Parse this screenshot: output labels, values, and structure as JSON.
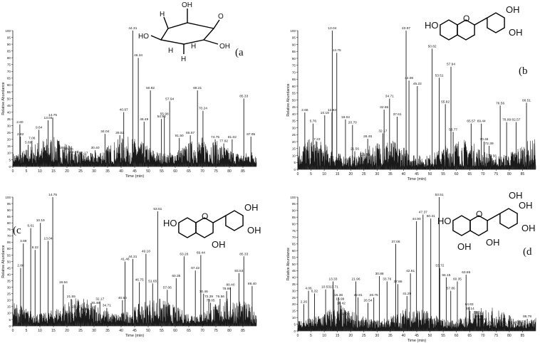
{
  "colors": {
    "trace": "#1a1a1a",
    "axis": "#222222",
    "text": "#111111"
  },
  "chart_data": [
    {
      "type": "line",
      "panel_label": "(a",
      "xlabel": "Time (min)",
      "ylabel": "Relative Abundance",
      "xlim": [
        0,
        90
      ],
      "ylim": [
        0,
        100
      ],
      "xticks": [
        "0",
        "5",
        "10",
        "15",
        "20",
        "25",
        "30",
        "35",
        "40",
        "45",
        "50",
        "55",
        "60",
        "65",
        "70",
        "75",
        "80",
        "85"
      ],
      "yticks": [
        "0",
        "5",
        "10",
        "15",
        "20",
        "25",
        "30",
        "35",
        "40",
        "45",
        "50",
        "55",
        "60",
        "65",
        "70",
        "75",
        "80",
        "85",
        "90",
        "95",
        "100"
      ],
      "structure": "myo-inositol",
      "peaks": [
        {
          "rt": 2.6,
          "label": "2.60",
          "y": 31
        },
        {
          "rt": 2.82,
          "label": "2.82",
          "y": 22
        },
        {
          "rt": 5.69,
          "label": "5.69",
          "y": 16
        },
        {
          "rt": 7.06,
          "label": "7.06",
          "y": 19
        },
        {
          "rt": 9.64,
          "label": "9.64",
          "y": 27
        },
        {
          "rt": 13.04,
          "label": "13.04",
          "y": 34
        },
        {
          "rt": 14.75,
          "label": "14.75",
          "y": 36
        },
        {
          "rt": 18.64,
          "label": "18.64",
          "y": 12
        },
        {
          "rt": 20.7,
          "label": "20.70",
          "y": 11
        },
        {
          "rt": 22.65,
          "label": "22.65",
          "y": 9
        },
        {
          "rt": 26.17,
          "label": "26.17",
          "y": 8
        },
        {
          "rt": 30.4,
          "label": "30.40",
          "y": 12
        },
        {
          "rt": 34.04,
          "label": "34.04",
          "y": 24
        },
        {
          "rt": 39.52,
          "label": "39.52",
          "y": 23
        },
        {
          "rt": 40.97,
          "label": "40.97",
          "y": 40
        },
        {
          "rt": 44.31,
          "label": "44.31",
          "y": 100
        },
        {
          "rt": 46.34,
          "label": "46.34",
          "y": 80
        },
        {
          "rt": 48.49,
          "label": "48.49",
          "y": 33
        },
        {
          "rt": 50.82,
          "label": "50.82",
          "y": 56
        },
        {
          "rt": 54.9,
          "label": "54.90",
          "y": 35
        },
        {
          "rt": 55.98,
          "label": "55.98",
          "y": 37
        },
        {
          "rt": 57.94,
          "label": "57.94",
          "y": 48
        },
        {
          "rt": 61.5,
          "label": "61.50",
          "y": 21
        },
        {
          "rt": 65.57,
          "label": "65.57",
          "y": 23
        },
        {
          "rt": 68.21,
          "label": "68.21",
          "y": 56
        },
        {
          "rt": 70.24,
          "label": "70.24",
          "y": 41
        },
        {
          "rt": 74.75,
          "label": "74.75",
          "y": 20
        },
        {
          "rt": 77.92,
          "label": "77.92",
          "y": 17
        },
        {
          "rt": 81.02,
          "label": "81.02",
          "y": 20
        },
        {
          "rt": 85.33,
          "label": "85.33",
          "y": 50
        },
        {
          "rt": 87.95,
          "label": "87.95",
          "y": 22
        }
      ]
    },
    {
      "type": "line",
      "panel_label": "(b",
      "xlabel": "Time (min)",
      "ylabel": "Relative Abundance",
      "xlim": [
        0,
        90
      ],
      "ylim": [
        0,
        100
      ],
      "xticks": [
        "0",
        "5",
        "10",
        "15",
        "20",
        "25",
        "30",
        "35",
        "40",
        "45",
        "50",
        "55",
        "60",
        "65",
        "70",
        "75",
        "80",
        "85"
      ],
      "yticks": [
        "0",
        "5",
        "10",
        "15",
        "20",
        "25",
        "30",
        "35",
        "40",
        "45",
        "50",
        "55",
        "60",
        "65",
        "70",
        "75",
        "80",
        "85",
        "90",
        "95",
        "100"
      ],
      "structure": "flavan-diol",
      "structure_labels": [
        "HO",
        "OH",
        "OH"
      ],
      "peaks": [
        {
          "rt": 2.66,
          "label": "2.66",
          "y": 41
        },
        {
          "rt": 5.76,
          "label": "5.76",
          "y": 33
        },
        {
          "rt": 7.23,
          "label": "7.23",
          "y": 20
        },
        {
          "rt": 10.19,
          "label": "10.19",
          "y": 39
        },
        {
          "rt": 12.93,
          "label": "12.93",
          "y": 41
        },
        {
          "rt": 13.04,
          "label": "13.04",
          "y": 100
        },
        {
          "rt": 14.75,
          "label": "14.75",
          "y": 84
        },
        {
          "rt": 18.04,
          "label": "18.04",
          "y": 36
        },
        {
          "rt": 20.7,
          "label": "20.70",
          "y": 32
        },
        {
          "rt": 21.56,
          "label": "21.56",
          "y": 13
        },
        {
          "rt": 25.59,
          "label": "25.59",
          "y": 9
        },
        {
          "rt": 26.45,
          "label": "26.45",
          "y": 22
        },
        {
          "rt": 32.17,
          "label": "32.17",
          "y": 26
        },
        {
          "rt": 32.65,
          "label": "32.65",
          "y": 43
        },
        {
          "rt": 34.71,
          "label": "34.71",
          "y": 51
        },
        {
          "rt": 37.61,
          "label": "37.61",
          "y": 38
        },
        {
          "rt": 40.97,
          "label": "40.97",
          "y": 100
        },
        {
          "rt": 42.06,
          "label": "42.06",
          "y": 64
        },
        {
          "rt": 45.22,
          "label": "45.22",
          "y": 60
        },
        {
          "rt": 50.82,
          "label": "50.82",
          "y": 87
        },
        {
          "rt": 53.51,
          "label": "53.51",
          "y": 66
        },
        {
          "rt": 55.82,
          "label": "55.82",
          "y": 47
        },
        {
          "rt": 57.94,
          "label": "57.94",
          "y": 74
        },
        {
          "rt": 58.77,
          "label": "58.77",
          "y": 27
        },
        {
          "rt": 65.57,
          "label": "65.57",
          "y": 33
        },
        {
          "rt": 69.44,
          "label": "69.44",
          "y": 33
        },
        {
          "rt": 70.46,
          "label": "70.46",
          "y": 20
        },
        {
          "rt": 72.39,
          "label": "72.39",
          "y": 17
        },
        {
          "rt": 73.56,
          "label": "73.56",
          "y": 8
        },
        {
          "rt": 76.56,
          "label": "76.56",
          "y": 46
        },
        {
          "rt": 78.99,
          "label": "78.99",
          "y": 34
        },
        {
          "rt": 82.57,
          "label": "82.57",
          "y": 34
        },
        {
          "rt": 86.51,
          "label": "86.51",
          "y": 48
        }
      ]
    },
    {
      "type": "line",
      "panel_label": "(c",
      "xlabel": "Time (min)",
      "ylabel": "Relative Abundance",
      "xlim": [
        0,
        90
      ],
      "ylim": [
        0,
        100
      ],
      "xticks": [
        "0",
        "5",
        "10",
        "15",
        "20",
        "25",
        "30",
        "35",
        "40",
        "45",
        "50",
        "55",
        "60",
        "65",
        "70",
        "75",
        "80",
        "85"
      ],
      "yticks": [
        "0",
        "5",
        "10",
        "15",
        "20",
        "25",
        "30",
        "35",
        "40",
        "45",
        "50",
        "55",
        "60",
        "65",
        "70",
        "75",
        "80",
        "85",
        "90",
        "95",
        "100"
      ],
      "structure": "catechin",
      "structure_labels": [
        "HO",
        "OH",
        "OH",
        "OH"
      ],
      "peaks": [
        {
          "rt": 2.88,
          "label": "2.88",
          "y": 45
        },
        {
          "rt": 3.89,
          "label": "3.89",
          "y": 64
        },
        {
          "rt": 6.61,
          "label": "6.61",
          "y": 76
        },
        {
          "rt": 8.22,
          "label": "8.22",
          "y": 59
        },
        {
          "rt": 10.19,
          "label": "10.19",
          "y": 80
        },
        {
          "rt": 13.04,
          "label": "13.04",
          "y": 66
        },
        {
          "rt": 14.75,
          "label": "14.75",
          "y": 100
        },
        {
          "rt": 18.64,
          "label": "18.64",
          "y": 32
        },
        {
          "rt": 21.55,
          "label": "21.55",
          "y": 21
        },
        {
          "rt": 23.45,
          "label": "23.45",
          "y": 13
        },
        {
          "rt": 26.45,
          "label": "26.45",
          "y": 11
        },
        {
          "rt": 30.48,
          "label": "30.48",
          "y": 16
        },
        {
          "rt": 32.17,
          "label": "32.17",
          "y": 19
        },
        {
          "rt": 34.71,
          "label": "34.71",
          "y": 14
        },
        {
          "rt": 40.5,
          "label": "40.50",
          "y": 20
        },
        {
          "rt": 41.46,
          "label": "41.46",
          "y": 50
        },
        {
          "rt": 44.31,
          "label": "44.31",
          "y": 52
        },
        {
          "rt": 46.75,
          "label": "46.75",
          "y": 34
        },
        {
          "rt": 49.18,
          "label": "49.18",
          "y": 56
        },
        {
          "rt": 51.65,
          "label": "51.65",
          "y": 33
        },
        {
          "rt": 53.51,
          "label": "53.51",
          "y": 89
        },
        {
          "rt": 57.06,
          "label": "57.06",
          "y": 28
        },
        {
          "rt": 60.35,
          "label": "60.35",
          "y": 37
        },
        {
          "rt": 63.26,
          "label": "63.26",
          "y": 54
        },
        {
          "rt": 67.42,
          "label": "67.42",
          "y": 43
        },
        {
          "rt": 69.44,
          "label": "69.44",
          "y": 55
        },
        {
          "rt": 70.46,
          "label": "70.46",
          "y": 25
        },
        {
          "rt": 72.39,
          "label": "72.39",
          "y": 21
        },
        {
          "rt": 73.05,
          "label": "73.05",
          "y": 18
        },
        {
          "rt": 76.56,
          "label": "76.56",
          "y": 21
        },
        {
          "rt": 78.98,
          "label": "78.98",
          "y": 27
        },
        {
          "rt": 80.4,
          "label": "80.40",
          "y": 30
        },
        {
          "rt": 83.53,
          "label": "83.53",
          "y": 41
        },
        {
          "rt": 85.33,
          "label": "85.33",
          "y": 54
        },
        {
          "rt": 88.4,
          "label": "88.40",
          "y": 31
        }
      ]
    },
    {
      "type": "line",
      "panel_label": "(d",
      "xlabel": "Time (min)",
      "ylabel": "Relative Abundance",
      "xlim": [
        0,
        90
      ],
      "ylim": [
        0,
        100
      ],
      "xticks": [
        "0",
        "5",
        "10",
        "15",
        "20",
        "25",
        "30",
        "35",
        "40",
        "45",
        "50",
        "55",
        "60",
        "65",
        "70",
        "75",
        "80",
        "85"
      ],
      "yticks": [
        "0",
        "5",
        "10",
        "15",
        "20",
        "25",
        "30",
        "35",
        "40",
        "45",
        "50",
        "55",
        "60",
        "65",
        "70",
        "75",
        "80",
        "85",
        "90",
        "95",
        "100"
      ],
      "structure": "gallocatechin",
      "structure_labels": [
        "HO",
        "OH",
        "OH",
        "OH",
        "OH",
        "OH"
      ],
      "peaks": [
        {
          "rt": 2.26,
          "label": "2.26",
          "y": 20
        },
        {
          "rt": 4.06,
          "label": "4.06",
          "y": 30
        },
        {
          "rt": 6.32,
          "label": "6.32",
          "y": 28
        },
        {
          "rt": 10.53,
          "label": "10.53",
          "y": 31
        },
        {
          "rt": 13.33,
          "label": "13.33",
          "y": 37
        },
        {
          "rt": 13.71,
          "label": "13.71",
          "y": 31
        },
        {
          "rt": 15.38,
          "label": "15.38",
          "y": 25
        },
        {
          "rt": 15.99,
          "label": "15.99",
          "y": 22
        },
        {
          "rt": 16.42,
          "label": "16.42",
          "y": 19
        },
        {
          "rt": 17.99,
          "label": "17.99",
          "y": 11
        },
        {
          "rt": 21.96,
          "label": "21.96",
          "y": 37
        },
        {
          "rt": 22.81,
          "label": "22.81",
          "y": 25
        },
        {
          "rt": 26.54,
          "label": "26.54",
          "y": 21
        },
        {
          "rt": 28.75,
          "label": "28.75",
          "y": 25
        },
        {
          "rt": 30.88,
          "label": "30.88",
          "y": 41
        },
        {
          "rt": 33.76,
          "label": "33.76",
          "y": 37
        },
        {
          "rt": 37.06,
          "label": "37.06",
          "y": 65
        },
        {
          "rt": 37.86,
          "label": "37.86",
          "y": 35
        },
        {
          "rt": 41.29,
          "label": "41.29",
          "y": 26
        },
        {
          "rt": 42.61,
          "label": "42.61",
          "y": 43
        },
        {
          "rt": 44.9,
          "label": "44.90",
          "y": 82
        },
        {
          "rt": 47.37,
          "label": "47.37",
          "y": 87
        },
        {
          "rt": 50.31,
          "label": "50.31",
          "y": 84
        },
        {
          "rt": 53.51,
          "label": "53.51",
          "y": 100
        },
        {
          "rt": 53.72,
          "label": "53.72",
          "y": 47
        },
        {
          "rt": 56.15,
          "label": "56.15",
          "y": 40
        },
        {
          "rt": 57.86,
          "label": "57.86",
          "y": 30
        },
        {
          "rt": 60.35,
          "label": "60.35",
          "y": 37
        },
        {
          "rt": 63.66,
          "label": "63.66",
          "y": 42
        },
        {
          "rt": 64.83,
          "label": "64.83",
          "y": 18
        },
        {
          "rt": 65.14,
          "label": "65.14",
          "y": 15
        },
        {
          "rt": 68.21,
          "label": "68.21",
          "y": 12
        },
        {
          "rt": 68.65,
          "label": "68.65",
          "y": 9
        },
        {
          "rt": 69.44,
          "label": "69.44",
          "y": 7
        },
        {
          "rt": 72.39,
          "label": "72.39",
          "y": 4
        },
        {
          "rt": 79.16,
          "label": "79.16",
          "y": 4
        },
        {
          "rt": 83.19,
          "label": "83.19",
          "y": 4
        },
        {
          "rt": 84.37,
          "label": "84.37",
          "y": 5
        },
        {
          "rt": 86.79,
          "label": "86.79",
          "y": 9
        }
      ]
    }
  ]
}
